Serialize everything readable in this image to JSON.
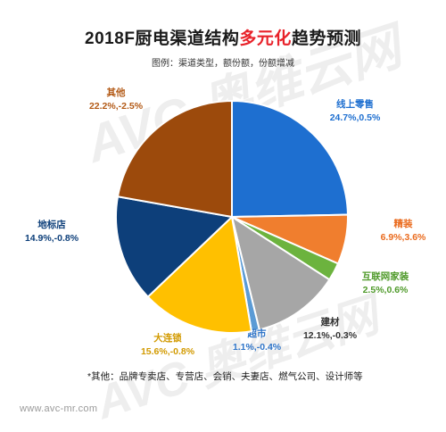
{
  "title": {
    "part1": "2018F厨电渠道结构",
    "highlight": "多元化",
    "part2": "趋势预测"
  },
  "subtitle": "图例：渠道类型，额份额，份额增减",
  "footnote": "*其他：品牌专卖店、专营店、会销、夫妻店、燃气公司、设计师等",
  "website": "www.avc-mr.com",
  "watermark_logo": "AVC 奥维云网 ALL VIEW CLOUD",
  "chart_data": {
    "type": "pie",
    "title": "2018F厨电渠道结构多元化趋势预测",
    "slices": [
      {
        "name": "线上零售",
        "value": 24.7,
        "change": "0.5%",
        "label": "24.7%,0.5%",
        "color": "#1e6fd0",
        "text_color": "#1e6fd0"
      },
      {
        "name": "精装",
        "value": 6.9,
        "change": "3.6%",
        "label": "6.9%,3.6%",
        "color": "#f07e2e",
        "text_color": "#ea6b1e"
      },
      {
        "name": "互联网家装",
        "value": 2.5,
        "change": "0.6%",
        "label": "2.5%,0.6%",
        "color": "#6cb33e",
        "text_color": "#4f9a2a"
      },
      {
        "name": "建材",
        "value": 12.1,
        "change": "-0.3%",
        "label": "12.1%,-0.3%",
        "color": "#a6a6a6",
        "text_color": "#333333"
      },
      {
        "name": "超市",
        "value": 1.1,
        "change": "-0.4%",
        "label": "1.1%,-0.4%",
        "color": "#5b9bd5",
        "text_color": "#2e74c8"
      },
      {
        "name": "大连锁",
        "value": 15.6,
        "change": "-0.8%",
        "label": "15.6%,-0.8%",
        "color": "#ffc000",
        "text_color": "#d29a00"
      },
      {
        "name": "地标店",
        "value": 14.9,
        "change": "-0.8%",
        "label": "14.9%,-0.8%",
        "color": "#0d3f7a",
        "text_color": "#0d3f7a"
      },
      {
        "name": "其他",
        "value": 22.2,
        "change": "-2.5%",
        "label": "22.2%,-2.5%",
        "color": "#9c4a0c",
        "text_color": "#b35a16"
      }
    ]
  }
}
